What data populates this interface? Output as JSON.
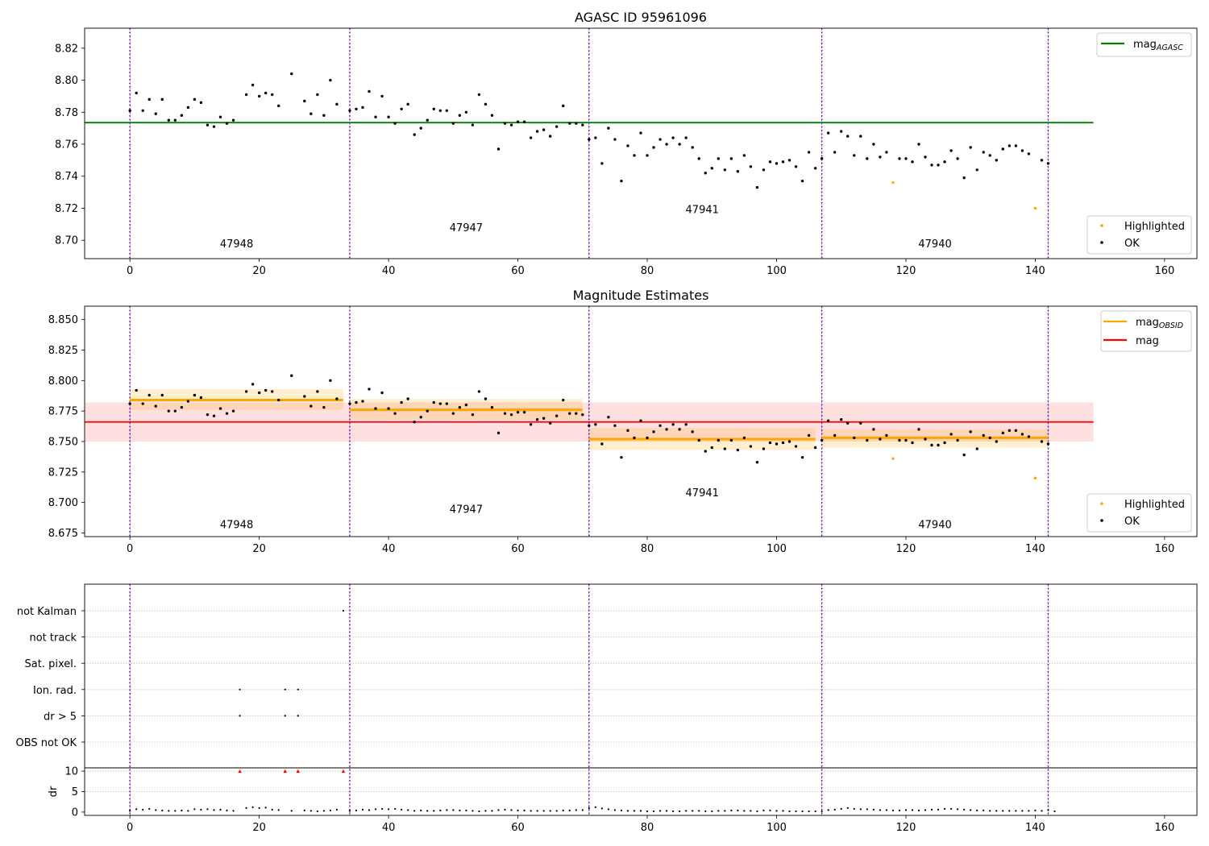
{
  "chart_data": [
    {
      "type": "scatter",
      "title": "AGASC ID 95961096",
      "xlim": [
        -7,
        165
      ],
      "ylim": [
        8.6885,
        8.8325
      ],
      "xticks": [
        0,
        20,
        40,
        60,
        80,
        100,
        120,
        140,
        160
      ],
      "yticks": [
        8.7,
        8.72,
        8.74,
        8.76,
        8.78,
        8.8,
        8.82
      ],
      "ytick_decimals": 2,
      "obs_boundaries": [
        0,
        34,
        71,
        107,
        142
      ],
      "obsid_labels": [
        {
          "text": "47948",
          "x": 16.5,
          "y": 8.6955
        },
        {
          "text": "47947",
          "x": 52.0,
          "y": 8.7055
        },
        {
          "text": "47941",
          "x": 88.5,
          "y": 8.717
        },
        {
          "text": "47940",
          "x": 124.5,
          "y": 8.6955
        }
      ],
      "reference_lines": [
        {
          "name": "mag",
          "subscript": "AGASC",
          "y": 8.7735,
          "x_range": [
            -7,
            149
          ],
          "color": "#008000"
        }
      ],
      "legends": [
        {
          "position": "top-right",
          "entries": [
            {
              "name": "mag",
              "subscript": "AGASC",
              "kind": "line",
              "color": "#008000"
            }
          ]
        },
        {
          "position": "bottom-right",
          "entries": [
            {
              "name": "Highlighted",
              "kind": "point",
              "color": "#ffa500"
            },
            {
              "name": "OK",
              "kind": "point",
              "color": "#000000"
            }
          ]
        }
      ],
      "series_ref": "points"
    },
    {
      "type": "scatter",
      "title": "Magnitude Estimates",
      "xlim": [
        -7,
        165
      ],
      "ylim": [
        8.672,
        8.861
      ],
      "xticks": [
        0,
        20,
        40,
        60,
        80,
        100,
        120,
        140,
        160
      ],
      "yticks": [
        8.675,
        8.7,
        8.725,
        8.75,
        8.775,
        8.8,
        8.825,
        8.85
      ],
      "ytick_decimals": 3,
      "obs_boundaries": [
        0,
        34,
        71,
        107,
        142
      ],
      "obsid_labels": [
        {
          "text": "47948",
          "x": 16.5,
          "y": 8.679
        },
        {
          "text": "47947",
          "x": 52.0,
          "y": 8.6915
        },
        {
          "text": "47941",
          "x": 88.5,
          "y": 8.705
        },
        {
          "text": "47940",
          "x": 124.5,
          "y": 8.679
        }
      ],
      "mag_line": {
        "name": "mag",
        "y": 8.766,
        "band": [
          8.75,
          8.782
        ],
        "x_range": [
          -7,
          149
        ],
        "color": "#ff0000"
      },
      "obsid_segments": [
        {
          "x_range": [
            0,
            33
          ],
          "mag": 8.784,
          "band": [
            8.776,
            8.793
          ]
        },
        {
          "x_range": [
            34,
            70
          ],
          "mag": 8.776,
          "band": [
            8.768,
            8.785
          ]
        },
        {
          "x_range": [
            71,
            106
          ],
          "mag": 8.752,
          "band": [
            8.743,
            8.761
          ]
        },
        {
          "x_range": [
            107,
            142
          ],
          "mag": 8.753,
          "band": [
            8.745,
            8.76
          ]
        }
      ],
      "legends": [
        {
          "position": "top-right",
          "entries": [
            {
              "name": "mag",
              "subscript": "OBSID",
              "kind": "line",
              "color": "#ffa500"
            },
            {
              "name": "mag",
              "kind": "line",
              "color": "#ff0000"
            }
          ]
        },
        {
          "position": "bottom-right",
          "entries": [
            {
              "name": "Highlighted",
              "kind": "point",
              "color": "#ffa500"
            },
            {
              "name": "OK",
              "kind": "point",
              "color": "#000000"
            }
          ]
        }
      ],
      "series_ref": "points"
    },
    {
      "type": "scatter",
      "title": "",
      "xlim": [
        -7,
        165
      ],
      "xticks": [
        0,
        20,
        40,
        60,
        80,
        100,
        120,
        140,
        160
      ],
      "flag_categories": [
        "not Kalman",
        "not track",
        "Sat. pixel.",
        "Ion. rad.",
        "dr > 5",
        "OBS not OK"
      ],
      "flags": {
        "not Kalman": [
          33
        ],
        "not track": [],
        "Sat. pixel.": [],
        "Ion. rad.": [
          17,
          24,
          26
        ],
        "dr > 5": [
          17,
          24,
          26
        ],
        "OBS not OK": []
      },
      "obs_boundaries": [
        0,
        34,
        71,
        107,
        142
      ],
      "dr_panel": {
        "ylabel": "dr",
        "yticks": [
          0,
          5,
          10
        ],
        "ylim": [
          -0.8,
          10.8
        ],
        "clip": 10
      },
      "dr": [
        0.3,
        0.7,
        0.6,
        0.8,
        0.5,
        0.4,
        0.3,
        0.3,
        0.4,
        0.3,
        0.7,
        0.6,
        0.7,
        0.5,
        0.6,
        0.4,
        0.3,
        10,
        1.0,
        1.2,
        1.0,
        1.1,
        0.6,
        0.5,
        10,
        0.3,
        10,
        0.4,
        0.3,
        0.2,
        0.3,
        0.4,
        0.6,
        10,
        0.3,
        0.4,
        0.6,
        0.5,
        0.7,
        0.8,
        0.7,
        0.8,
        0.6,
        0.5,
        0.3,
        0.4,
        0.3,
        0.3,
        0.4,
        0.5,
        0.5,
        0.4,
        0.4,
        0.3,
        0.2,
        0.3,
        0.3,
        0.5,
        0.6,
        0.5,
        0.4,
        0.4,
        0.3,
        0.3,
        0.3,
        0.3,
        0.3,
        0.4,
        0.4,
        0.5,
        0.5,
        1.0,
        1.2,
        0.9,
        0.7,
        0.5,
        0.4,
        0.3,
        0.3,
        0.3,
        0.2,
        0.2,
        0.3,
        0.3,
        0.2,
        0.2,
        0.3,
        0.3,
        0.3,
        0.2,
        0.2,
        0.3,
        0.3,
        0.4,
        0.4,
        0.3,
        0.3,
        0.2,
        0.4,
        0.4,
        0.3,
        0.3,
        0.2,
        0.2,
        0.2,
        0.2,
        0.2,
        0.2,
        0.5,
        0.6,
        0.8,
        1.0,
        0.8,
        0.7,
        0.7,
        0.6,
        0.5,
        0.5,
        0.4,
        0.4,
        0.5,
        0.5,
        0.4,
        0.5,
        0.6,
        0.6,
        0.8,
        0.8,
        0.7,
        0.6,
        0.5,
        0.4,
        0.4,
        0.3,
        0.3,
        0.3,
        0.3,
        0.3,
        0.3,
        0.3,
        0.4,
        0.3,
        0.5,
        0.2
      ],
      "dr_flagged": [
        17,
        24,
        26,
        33
      ]
    }
  ],
  "points": {
    "ok": [
      [
        0,
        8.781
      ],
      [
        1,
        8.792
      ],
      [
        2,
        8.781
      ],
      [
        3,
        8.788
      ],
      [
        4,
        8.779
      ],
      [
        5,
        8.788
      ],
      [
        6,
        8.775
      ],
      [
        7,
        8.775
      ],
      [
        8,
        8.778
      ],
      [
        9,
        8.783
      ],
      [
        10,
        8.788
      ],
      [
        11,
        8.786
      ],
      [
        12,
        8.772
      ],
      [
        13,
        8.771
      ],
      [
        14,
        8.777
      ],
      [
        15,
        8.773
      ],
      [
        16,
        8.775
      ],
      [
        18,
        8.791
      ],
      [
        19,
        8.797
      ],
      [
        20,
        8.79
      ],
      [
        21,
        8.792
      ],
      [
        22,
        8.791
      ],
      [
        23,
        8.784
      ],
      [
        25,
        8.804
      ],
      [
        27,
        8.787
      ],
      [
        28,
        8.779
      ],
      [
        29,
        8.791
      ],
      [
        30,
        8.778
      ],
      [
        31,
        8.8
      ],
      [
        32,
        8.785
      ],
      [
        34,
        8.781
      ],
      [
        35,
        8.782
      ],
      [
        36,
        8.783
      ],
      [
        37,
        8.793
      ],
      [
        38,
        8.777
      ],
      [
        39,
        8.79
      ],
      [
        40,
        8.777
      ],
      [
        41,
        8.773
      ],
      [
        42,
        8.782
      ],
      [
        43,
        8.785
      ],
      [
        44,
        8.766
      ],
      [
        45,
        8.77
      ],
      [
        46,
        8.775
      ],
      [
        47,
        8.782
      ],
      [
        48,
        8.781
      ],
      [
        49,
        8.781
      ],
      [
        50,
        8.773
      ],
      [
        51,
        8.778
      ],
      [
        52,
        8.78
      ],
      [
        53,
        8.772
      ],
      [
        54,
        8.791
      ],
      [
        55,
        8.785
      ],
      [
        56,
        8.778
      ],
      [
        57,
        8.757
      ],
      [
        58,
        8.773
      ],
      [
        59,
        8.772
      ],
      [
        60,
        8.774
      ],
      [
        61,
        8.774
      ],
      [
        62,
        8.764
      ],
      [
        63,
        8.768
      ],
      [
        64,
        8.769
      ],
      [
        65,
        8.765
      ],
      [
        66,
        8.771
      ],
      [
        67,
        8.784
      ],
      [
        68,
        8.773
      ],
      [
        69,
        8.773
      ],
      [
        70,
        8.772
      ],
      [
        71,
        8.763
      ],
      [
        72,
        8.764
      ],
      [
        73,
        8.748
      ],
      [
        74,
        8.77
      ],
      [
        75,
        8.763
      ],
      [
        76,
        8.737
      ],
      [
        77,
        8.759
      ],
      [
        78,
        8.753
      ],
      [
        79,
        8.767
      ],
      [
        80,
        8.753
      ],
      [
        81,
        8.758
      ],
      [
        82,
        8.763
      ],
      [
        83,
        8.76
      ],
      [
        84,
        8.764
      ],
      [
        85,
        8.76
      ],
      [
        86,
        8.764
      ],
      [
        87,
        8.758
      ],
      [
        88,
        8.751
      ],
      [
        89,
        8.742
      ],
      [
        90,
        8.745
      ],
      [
        91,
        8.751
      ],
      [
        92,
        8.744
      ],
      [
        93,
        8.751
      ],
      [
        94,
        8.743
      ],
      [
        95,
        8.753
      ],
      [
        96,
        8.746
      ],
      [
        97,
        8.733
      ],
      [
        98,
        8.744
      ],
      [
        99,
        8.749
      ],
      [
        100,
        8.748
      ],
      [
        101,
        8.749
      ],
      [
        102,
        8.75
      ],
      [
        103,
        8.746
      ],
      [
        104,
        8.737
      ],
      [
        105,
        8.755
      ],
      [
        106,
        8.745
      ],
      [
        107,
        8.751
      ],
      [
        108,
        8.767
      ],
      [
        109,
        8.755
      ],
      [
        110,
        8.768
      ],
      [
        111,
        8.765
      ],
      [
        112,
        8.753
      ],
      [
        113,
        8.765
      ],
      [
        114,
        8.751
      ],
      [
        115,
        8.76
      ],
      [
        116,
        8.752
      ],
      [
        117,
        8.755
      ],
      [
        119,
        8.751
      ],
      [
        120,
        8.751
      ],
      [
        121,
        8.749
      ],
      [
        122,
        8.76
      ],
      [
        123,
        8.752
      ],
      [
        124,
        8.747
      ],
      [
        125,
        8.747
      ],
      [
        126,
        8.749
      ],
      [
        127,
        8.756
      ],
      [
        128,
        8.751
      ],
      [
        129,
        8.739
      ],
      [
        130,
        8.758
      ],
      [
        131,
        8.744
      ],
      [
        132,
        8.755
      ],
      [
        133,
        8.753
      ],
      [
        134,
        8.75
      ],
      [
        135,
        8.757
      ],
      [
        136,
        8.759
      ],
      [
        137,
        8.759
      ],
      [
        138,
        8.756
      ],
      [
        139,
        8.754
      ],
      [
        141,
        8.75
      ],
      [
        142,
        8.748
      ]
    ],
    "highlighted": [
      [
        118,
        8.736
      ],
      [
        140,
        8.72
      ]
    ]
  }
}
